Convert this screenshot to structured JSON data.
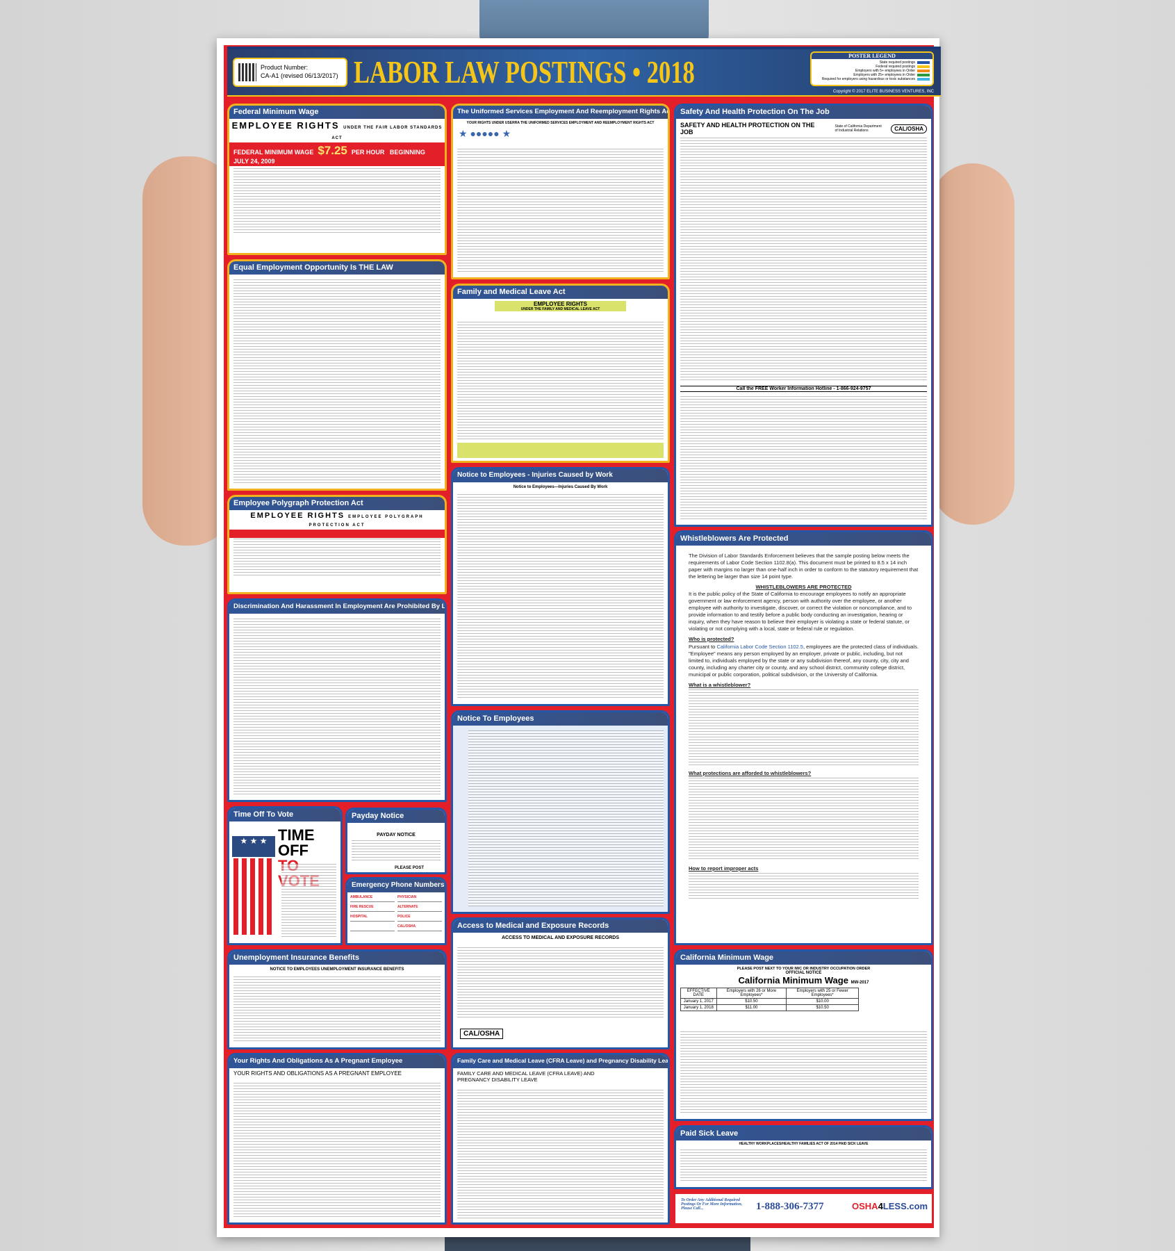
{
  "header": {
    "product_label": "Product Number:",
    "product_number": "CA-A1 (revised 06/13/2017)",
    "title": "LABOR LAW POSTINGS • 2018",
    "legend_title": "POSTER LEGEND",
    "legend_items": [
      {
        "label": "State required postings",
        "color": "#2457a8"
      },
      {
        "label": "Federal required postings",
        "color": "#f5c518"
      },
      {
        "label": "Employers with 5+ employees in Order",
        "color": "#f08a1c"
      },
      {
        "label": "Employers with 25+ employees in Order",
        "color": "#2e9a3e"
      },
      {
        "label": "Required for employers using hazardous or toxic substances",
        "color": "#3fb3e6"
      }
    ],
    "copyright": "Copyright © 2017 ELITE BUSINESS VENTURES, INC"
  },
  "colors": {
    "frame_red": "#e3202a",
    "federal_gold": "#f2b21e",
    "state_blue": "#2457a8",
    "title_gold": "#f5c518"
  },
  "sections": {
    "federal_min_wage": {
      "title": "Federal Minimum Wage",
      "heading": "EMPLOYEE RIGHTS",
      "heading_sub": "UNDER THE FAIR LABOR STANDARDS ACT",
      "bar_label": "FEDERAL MINIMUM WAGE",
      "rate": "$7.25",
      "per": "PER HOUR",
      "since": "BEGINNING JULY 24, 2009"
    },
    "eeo": {
      "title": "Equal Employment Opportunity Is THE LAW"
    },
    "polygraph": {
      "title": "Employee Polygraph Protection Act",
      "heading": "EMPLOYEE RIGHTS",
      "heading_sub": "EMPLOYEE POLYGRAPH PROTECTION ACT"
    },
    "discrimination": {
      "title": "Discrimination And Harassment In Employment Are Prohibited By Law"
    },
    "vote": {
      "title": "Time Off To Vote",
      "line1": "TIME OFF",
      "line2": "TO VOTE"
    },
    "payday": {
      "title": "Payday Notice",
      "heading": "PAYDAY NOTICE",
      "post": "PLEASE POST"
    },
    "emergency": {
      "title": "Emergency Phone Numbers",
      "fields": [
        "AMBULANCE",
        "PHYSICIAN",
        "FIRE RESCUE",
        "ALTERNATE",
        "HOSPITAL",
        "POLICE",
        "",
        "CAL/OSHA"
      ]
    },
    "unemployment": {
      "title": "Unemployment Insurance Benefits",
      "heading": "NOTICE TO EMPLOYEES UNEMPLOYMENT INSURANCE BENEFITS"
    },
    "pregnant": {
      "title": "Your Rights And Obligations As A Pregnant Employee",
      "heading": "YOUR RIGHTS AND OBLIGATIONS AS A PREGNANT EMPLOYEE"
    },
    "userra": {
      "title": "The Uniformed Services Employment And Reemployment Rights Act",
      "heading": "YOUR RIGHTS UNDER USERRA THE UNIFORMED SERVICES EMPLOYMENT AND REEMPLOYMENT RIGHTS ACT"
    },
    "fmla": {
      "title": "Family and Medical Leave Act",
      "heading": "EMPLOYEE RIGHTS",
      "heading_sub": "UNDER THE FAMILY AND MEDICAL LEAVE ACT"
    },
    "injuries": {
      "title": "Notice to Employees - Injuries Caused by Work",
      "heading": "Notice to Employees—Injuries Caused By Work"
    },
    "notice": {
      "title": "Notice To Employees"
    },
    "access": {
      "title": "Access to Medical and Exposure Records",
      "heading": "ACCESS TO MEDICAL AND EXPOSURE RECORDS"
    },
    "cfra": {
      "title": "Family Care and Medical Leave (CFRA Leave) and Pregnancy Disability Leave",
      "heading": "FAMILY CARE AND MEDICAL LEAVE (CFRA LEAVE) AND PREGNANCY DISABILITY LEAVE"
    },
    "safety": {
      "title": "Safety And Health Protection On The Job",
      "heading": "SAFETY AND HEALTH PROTECTION ON THE JOB",
      "agency": "State of California Department of Industrial Relations",
      "logo": "CAL/OSHA",
      "hotline": "Call the FREE Worker Information Hotline - 1-866-924-9757"
    },
    "whistle": {
      "title": "Whistleblowers Are Protected",
      "intro": "The Division of Labor Standards Enforcement believes that the sample posting below meets the requirements of Labor Code Section 1102.8(a). This document must be printed to 8.5 x 14 inch paper with margins no larger than one-half inch in order to conform to the statutory requirement that the lettering be larger than size 14 point type.",
      "center_title": "WHISTLEBLOWERS ARE PROTECTED",
      "p1": "It is the public policy of the State of California to encourage employees to notify an appropriate government or law enforcement agency, person with authority over the employee, or another employee with authority to investigate, discover, or correct the violation or noncompliance, and to provide information to and testify before a public body conducting an investigation, hearing or inquiry, when they have reason to believe their employer is violating a state or federal statute, or violating or not complying with a local, state or federal rule or regulation.",
      "q1": "Who is protected?",
      "q1_link": "California Labor Code Section 1102.5",
      "q1_text": ", employees are the protected class of individuals. \"Employee\" means any person employed by an employer, private or public, including, but not limited to, individuals employed by the state or any subdivision thereof, any county, city, city and county, including any charter city or county, and any school district, community college district, municipal or public corporation, political subdivision, or the University of California.",
      "q1_prefix": "Pursuant to ",
      "q2": "What is a whistleblower?",
      "q3": "What protections are afforded to whistleblowers?",
      "q4": "How to report improper acts"
    },
    "ca_min_wage": {
      "title": "California Minimum Wage",
      "pre": "PLEASE POST NEXT TO YOUR IWC OR INDUSTRY OCCUPATION ORDER",
      "official": "OFFICIAL NOTICE",
      "heading": "California Minimum Wage",
      "code": "MW-2017",
      "columns": [
        "EFFECTIVE DATE",
        "Employers with 26 or More Employees*",
        "Employers with 25 or Fewer Employees*"
      ],
      "rows": [
        [
          "January 1, 2017",
          "$10.50",
          "$10.00"
        ],
        [
          "January 1, 2018",
          "$11.00",
          "$10.50"
        ]
      ]
    },
    "sick": {
      "title": "Paid Sick Leave",
      "heading": "HEALTHY WORKPLACES/HEALTHY FAMILIES ACT OF 2014 PAID SICK LEAVE"
    }
  },
  "footer": {
    "ask": "To Order Any Additional Required Postings Or For More Information, Please Call...",
    "phone": "1-888-306-7377",
    "logo_a": "OSHA",
    "logo_b": "4",
    "logo_c": "LESS.com"
  }
}
